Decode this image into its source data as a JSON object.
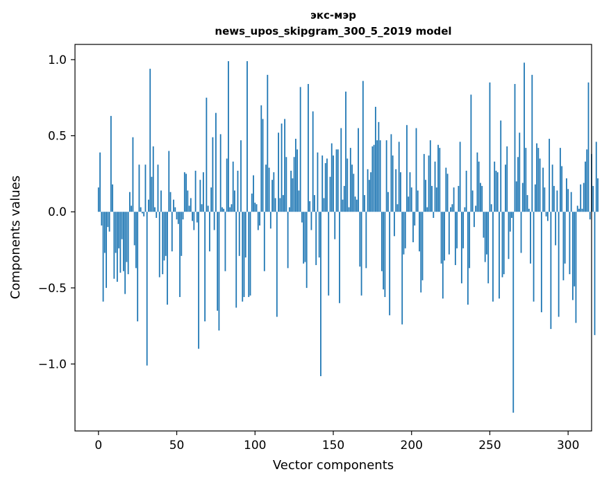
{
  "chart_data": {
    "type": "bar",
    "title_line1": "экс-мэр",
    "title_line2": "news_upos_skipgram_300_5_2019 model",
    "xlabel": "Vector components",
    "ylabel": "Components values",
    "xlim": [
      -15,
      315
    ],
    "ylim": [
      -1.44,
      1.1
    ],
    "xticks": [
      {
        "value": 0,
        "label": "0"
      },
      {
        "value": 50,
        "label": "50"
      },
      {
        "value": 100,
        "label": "100"
      },
      {
        "value": 150,
        "label": "150"
      },
      {
        "value": 200,
        "label": "200"
      },
      {
        "value": 250,
        "label": "250"
      },
      {
        "value": 300,
        "label": "300"
      }
    ],
    "yticks": [
      {
        "value": 1.0,
        "label": "1.0"
      },
      {
        "value": 0.5,
        "label": "0.5"
      },
      {
        "value": 0.0,
        "label": "0.0"
      },
      {
        "value": -0.5,
        "label": "−0.5"
      },
      {
        "value": -1.0,
        "label": "−1.0"
      }
    ],
    "bar_color": "#1f77b4",
    "values": [
      0.16,
      0.39,
      -0.09,
      -0.59,
      -0.27,
      -0.5,
      -0.1,
      -0.13,
      0.63,
      0.18,
      -0.44,
      -0.27,
      -0.46,
      -0.24,
      -0.4,
      -0.18,
      -0.39,
      -0.54,
      -0.33,
      -0.41,
      0.13,
      0.04,
      0.49,
      -0.22,
      -0.37,
      -0.72,
      0.31,
      0.03,
      -0.01,
      -0.03,
      0.31,
      -1.01,
      0.08,
      0.94,
      0.23,
      0.43,
      0.03,
      -0.04,
      0.31,
      -0.43,
      0.14,
      -0.41,
      -0.32,
      -0.29,
      -0.61,
      0.4,
      0.13,
      -0.26,
      0.08,
      0.03,
      -0.05,
      -0.08,
      -0.56,
      -0.29,
      -0.05,
      0.26,
      0.25,
      0.14,
      0.04,
      0.09,
      -0.06,
      -0.12,
      0.27,
      -0.07,
      -0.9,
      0.21,
      0.05,
      0.26,
      -0.72,
      0.75,
      0.04,
      -0.26,
      0.16,
      0.49,
      -0.12,
      0.65,
      -0.65,
      -0.78,
      0.51,
      0.03,
      0.02,
      -0.39,
      0.35,
      0.99,
      0.03,
      0.05,
      0.33,
      0.14,
      -0.63,
      0.27,
      -0.29,
      0.47,
      -0.59,
      -0.56,
      -0.3,
      0.99,
      -0.56,
      -0.55,
      0.12,
      0.24,
      0.06,
      0.05,
      -0.12,
      -0.09,
      0.7,
      0.61,
      -0.39,
      0.31,
      0.9,
      0.29,
      -0.11,
      0.21,
      0.26,
      0.09,
      -0.69,
      0.52,
      0.09,
      0.58,
      0.11,
      0.61,
      0.36,
      -0.37,
      0.03,
      0.27,
      0.22,
      0.36,
      0.48,
      0.41,
      0.14,
      0.82,
      -0.07,
      -0.34,
      -0.33,
      -0.5,
      0.84,
      0.07,
      -0.12,
      0.66,
      0.11,
      -0.35,
      0.39,
      -0.3,
      -1.08,
      0.37,
      0.09,
      0.32,
      0.35,
      -0.55,
      0.23,
      0.45,
      0.37,
      -0.18,
      0.41,
      0.41,
      -0.6,
      0.55,
      0.08,
      0.17,
      0.79,
      0.35,
      0.03,
      0.42,
      0.31,
      0.25,
      0.1,
      0.08,
      0.55,
      -0.36,
      -0.55,
      0.86,
      0.11,
      -0.37,
      0.28,
      0.21,
      0.26,
      0.43,
      0.44,
      0.69,
      0.47,
      0.59,
      0.47,
      -0.39,
      -0.51,
      -0.56,
      0.47,
      0.13,
      -0.68,
      0.51,
      0.37,
      -0.16,
      0.28,
      0.05,
      0.46,
      0.26,
      -0.74,
      -0.28,
      -0.24,
      0.57,
      0.1,
      0.26,
      0.16,
      -0.2,
      -0.09,
      0.55,
      0.14,
      -0.26,
      -0.53,
      -0.45,
      0.38,
      0.21,
      0.03,
      0.37,
      0.47,
      0.17,
      -0.04,
      0.33,
      0.16,
      0.44,
      0.42,
      -0.34,
      -0.57,
      -0.32,
      0.29,
      0.25,
      -0.28,
      0.03,
      0.05,
      0.16,
      -0.35,
      -0.24,
      0.17,
      0.46,
      -0.47,
      -0.24,
      0.03,
      0.27,
      -0.61,
      -0.37,
      0.77,
      0.14,
      -0.1,
      0.04,
      0.39,
      0.33,
      0.19,
      0.17,
      -0.17,
      -0.33,
      -0.28,
      -0.47,
      0.85,
      0.05,
      -0.59,
      0.33,
      0.27,
      0.26,
      -0.57,
      0.6,
      -0.43,
      -0.41,
      0.31,
      0.43,
      -0.31,
      -0.13,
      -0.04,
      -1.32,
      0.84,
      0.2,
      0.36,
      0.52,
      -0.27,
      0.19,
      0.98,
      0.42,
      0.11,
      0.02,
      -0.34,
      0.9,
      -0.59,
      0.18,
      0.45,
      0.42,
      0.35,
      -0.66,
      0.29,
      0.16,
      -0.03,
      -0.06,
      0.48,
      -0.77,
      0.31,
      0.17,
      -0.22,
      0.14,
      -0.69,
      0.42,
      0.3,
      -0.45,
      -0.34,
      0.22,
      0.15,
      -0.41,
      0.13,
      -0.58,
      -0.49,
      -0.73,
      0.04,
      0.02,
      0.18,
      0.02,
      0.19,
      0.33,
      0.41,
      0.85,
      -0.05,
      0.38,
      0.17,
      -0.81,
      0.46,
      0.22
    ]
  }
}
